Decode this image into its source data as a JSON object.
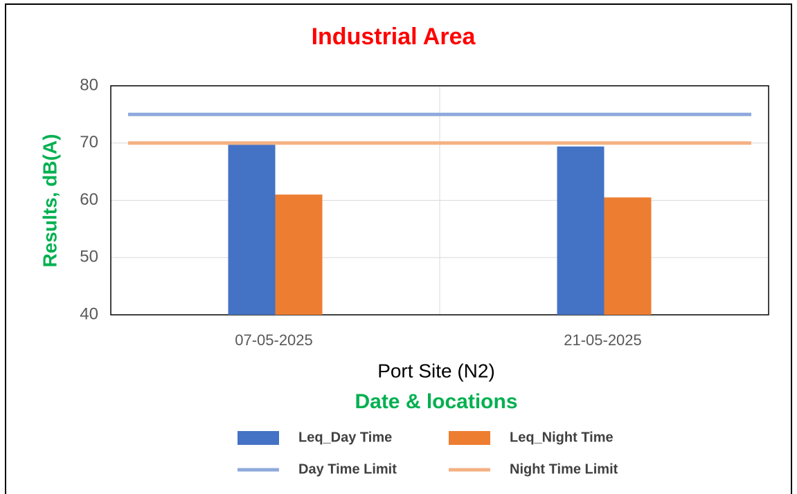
{
  "chart_data": {
    "type": "bar",
    "title": "Industrial Area",
    "y_label": "Results, dB(A)",
    "x_label": "Port Site (N2)",
    "x_sublabel": "Date & locations",
    "categories": [
      "07-05-2025",
      "21-05-2025"
    ],
    "series": [
      {
        "name": "Leq_Day Time",
        "color": "#4472c4",
        "kind": "bar",
        "values": [
          69.7,
          69.4
        ]
      },
      {
        "name": "Leq_Night Time",
        "color": "#ed7d31",
        "kind": "bar",
        "values": [
          61.0,
          60.5
        ]
      },
      {
        "name": "Day Time Limit",
        "color": "#8faadc",
        "kind": "line",
        "values": [
          75,
          75
        ]
      },
      {
        "name": "Night Time Limit",
        "color": "#f4b183",
        "kind": "line",
        "values": [
          70,
          70
        ]
      }
    ],
    "ylim": [
      40,
      80
    ],
    "yticks": [
      40,
      50,
      60,
      70,
      80
    ],
    "grid": true
  }
}
